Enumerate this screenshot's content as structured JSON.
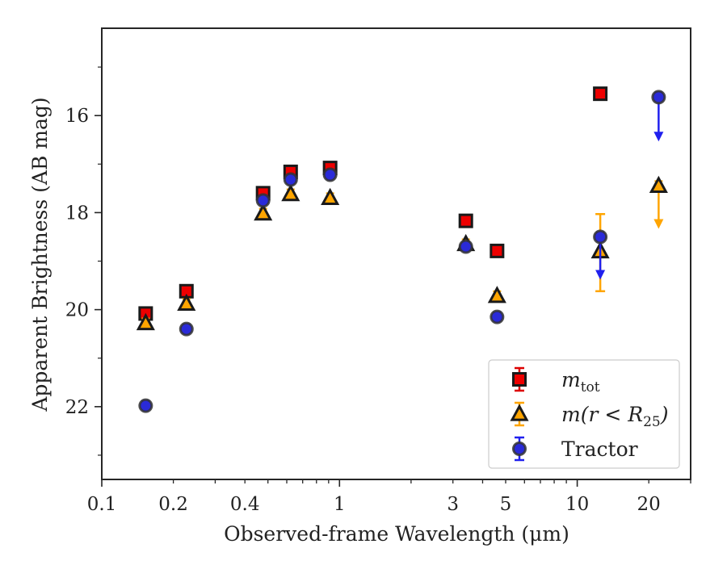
{
  "chart_data": {
    "type": "scatter",
    "xlabel": "Observed-frame Wavelength (μm)",
    "ylabel": "Apparent Brightness (AB mag)",
    "x_scale": "log",
    "xlim": [
      0.1,
      30
    ],
    "ylim": [
      23.5,
      14.2
    ],
    "y_inverted": true,
    "grid": false,
    "legend_position": "lower right",
    "x_ticks": [
      {
        "value": 0.1,
        "label": "0.1"
      },
      {
        "value": 0.2,
        "label": "0.2"
      },
      {
        "value": 0.4,
        "label": "0.4"
      },
      {
        "value": 1,
        "label": "1"
      },
      {
        "value": 3,
        "label": "3"
      },
      {
        "value": 5,
        "label": "5"
      },
      {
        "value": 10,
        "label": "10"
      },
      {
        "value": 20,
        "label": "20"
      }
    ],
    "y_ticks": [
      {
        "value": 16,
        "label": "16"
      },
      {
        "value": 18,
        "label": "18"
      },
      {
        "value": 20,
        "label": "20"
      },
      {
        "value": 22,
        "label": "22"
      }
    ],
    "series": [
      {
        "name_main": "m",
        "name_sub": "tot",
        "marker": "square",
        "color": "#ee0000",
        "edge_color": "#1a1a1a",
        "errbar_color": "#dd0000",
        "points": [
          {
            "x": 0.153,
            "y": 20.08
          },
          {
            "x": 0.227,
            "y": 19.62
          },
          {
            "x": 0.477,
            "y": 17.6
          },
          {
            "x": 0.623,
            "y": 17.16
          },
          {
            "x": 0.913,
            "y": 17.08
          },
          {
            "x": 3.4,
            "y": 18.17
          },
          {
            "x": 4.6,
            "y": 18.79
          },
          {
            "x": 12.5,
            "y": 15.55
          }
        ]
      },
      {
        "name_main": "m(r < R",
        "name_sub": "25",
        "name_tail": ")",
        "marker": "triangle",
        "color": "#ffa500",
        "edge_color": "#1a1a1a",
        "errbar_color": "#ffa500",
        "points": [
          {
            "x": 0.153,
            "y": 20.28
          },
          {
            "x": 0.227,
            "y": 19.88
          },
          {
            "x": 0.477,
            "y": 18.02
          },
          {
            "x": 0.623,
            "y": 17.62
          },
          {
            "x": 0.913,
            "y": 17.7
          },
          {
            "x": 3.4,
            "y": 18.65
          },
          {
            "x": 4.6,
            "y": 19.72
          },
          {
            "x": 12.5,
            "y": 18.8,
            "err_low": 18.03,
            "err_high": 19.62
          },
          {
            "x": 22,
            "y": 17.45,
            "upper_limit": true,
            "arrow_to": 18.3
          }
        ]
      },
      {
        "name_main": "Tractor",
        "marker": "circle",
        "color": "#2a2ad8",
        "edge_color": "#333333",
        "errbar_color": "#2020ee",
        "points": [
          {
            "x": 0.153,
            "y": 21.98
          },
          {
            "x": 0.227,
            "y": 20.4
          },
          {
            "x": 0.477,
            "y": 17.75
          },
          {
            "x": 0.623,
            "y": 17.32
          },
          {
            "x": 0.913,
            "y": 17.22
          },
          {
            "x": 3.4,
            "y": 18.7
          },
          {
            "x": 4.6,
            "y": 20.15
          },
          {
            "x": 12.5,
            "y": 18.5,
            "upper_limit": true,
            "arrow_to": 19.35
          },
          {
            "x": 22,
            "y": 15.62,
            "upper_limit": true,
            "arrow_to": 16.5
          }
        ]
      }
    ]
  }
}
